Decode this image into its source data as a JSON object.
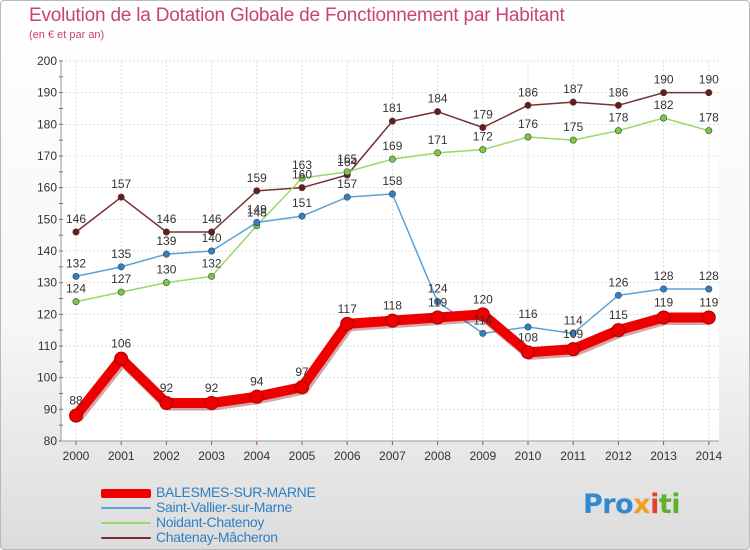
{
  "title": "Evolution de la Dotation Globale de Fonctionnement par Habitant",
  "subtitle": "(en € et par an)",
  "logo": [
    "Pro",
    "x",
    "i",
    "ti"
  ],
  "colors": {
    "title": "#c8407c",
    "axis_text": "#333333",
    "label_text": "#333333",
    "legend_text": "#2e7fc2",
    "grid": "#dddddd"
  },
  "chart_data": {
    "type": "line",
    "title": "Evolution de la Dotation Globale de Fonctionnement par Habitant",
    "subtitle": "(en € et par an)",
    "xlabel": "",
    "ylabel": "",
    "x": [
      "2000",
      "2001",
      "2002",
      "2003",
      "2004",
      "2005",
      "2006",
      "2007",
      "2008",
      "2009",
      "2010",
      "2011",
      "2012",
      "2013",
      "2014"
    ],
    "ylim": [
      80,
      200
    ],
    "yticks": [
      80,
      90,
      100,
      110,
      120,
      130,
      140,
      150,
      160,
      170,
      180,
      190,
      200
    ],
    "grid": true,
    "legend_position": "bottom-left",
    "series": [
      {
        "name": "BALESMES-SUR-MARNE",
        "color": "#ee0000",
        "marker": "#ee0000",
        "values": [
          88,
          106,
          92,
          92,
          94,
          97,
          117,
          118,
          119,
          120,
          108,
          109,
          115,
          119,
          119
        ],
        "labels": [
          "88",
          "106",
          "92",
          "92",
          "94",
          "97",
          "117",
          "118",
          "119",
          "120",
          "108",
          "109",
          "115",
          "119",
          "119"
        ]
      },
      {
        "name": "Saint-Vallier-sur-Marne",
        "color": "#5aa2d8",
        "marker": "#2f80c8",
        "values": [
          132,
          135,
          139,
          140,
          149,
          151,
          157,
          158,
          124,
          114,
          116,
          114,
          126,
          128,
          128
        ],
        "labels": [
          "132",
          "135",
          "139",
          "140",
          "149",
          "151",
          "157",
          "158",
          "124",
          "114",
          "116",
          "114",
          "126",
          "128",
          "128"
        ]
      },
      {
        "name": "Noidant-Chatenoy",
        "color": "#9ad86a",
        "marker": "#78c840",
        "values": [
          124,
          127,
          130,
          132,
          148,
          163,
          165,
          169,
          171,
          172,
          176,
          175,
          178,
          182,
          178
        ],
        "labels": [
          "124",
          "127",
          "130",
          "132",
          "148",
          "163",
          "165",
          "169",
          "171",
          "172",
          "176",
          "175",
          "178",
          "182",
          "178"
        ]
      },
      {
        "name": "Chatenay-Mâcheron",
        "color": "#7a3030",
        "marker": "#6a1a1a",
        "values": [
          146,
          157,
          146,
          146,
          159,
          160,
          164,
          181,
          184,
          179,
          186,
          187,
          186,
          190,
          190
        ],
        "labels": [
          "146",
          "157",
          "146",
          "146",
          "159",
          "160",
          "164",
          "181",
          "184",
          "179",
          "186",
          "187",
          "186",
          "190",
          "190"
        ]
      }
    ]
  }
}
